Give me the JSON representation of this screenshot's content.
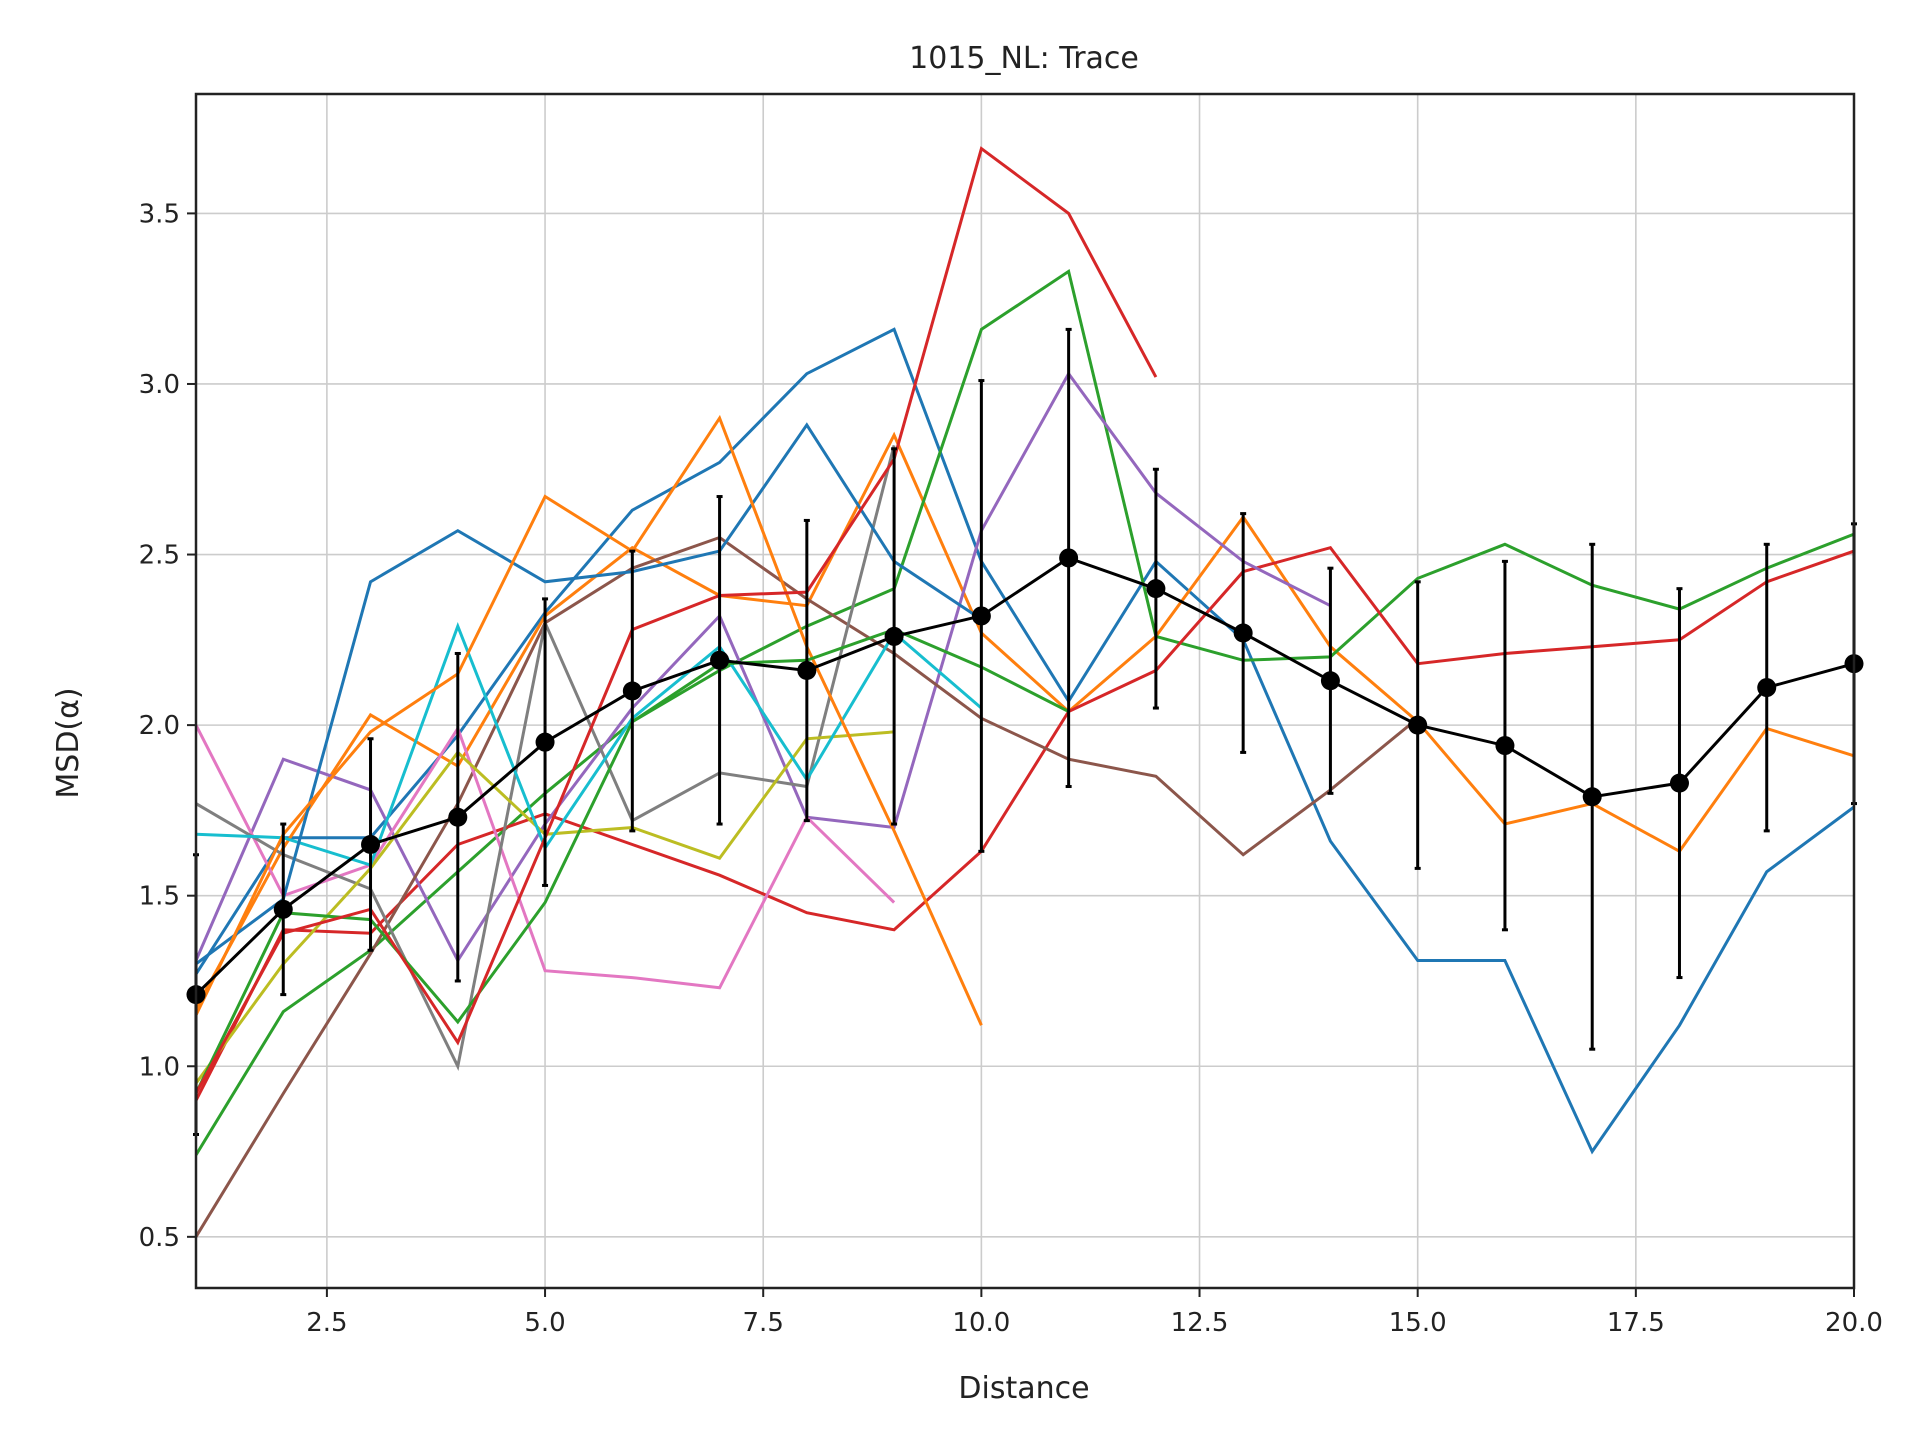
{
  "chart_data": {
    "type": "line",
    "title": "1015_NL: Trace",
    "xlabel": "Distance",
    "ylabel": "MSD(α)",
    "xlim": [
      1,
      20
    ],
    "ylim": [
      0.35,
      3.85
    ],
    "xticks": [
      2.5,
      5.0,
      7.5,
      10.0,
      12.5,
      15.0,
      17.5,
      20.0
    ],
    "xtick_labels": [
      "2.5",
      "5.0",
      "7.5",
      "10.0",
      "12.5",
      "15.0",
      "17.5",
      "20.0"
    ],
    "yticks": [
      0.5,
      1.0,
      1.5,
      2.0,
      2.5,
      3.0,
      3.5
    ],
    "ytick_labels": [
      "0.5",
      "1.0",
      "1.5",
      "2.0",
      "2.5",
      "3.0",
      "3.5"
    ],
    "grid": true,
    "legend": "none",
    "series": [
      {
        "color": "#1f77b4",
        "x": [
          1,
          2,
          3,
          4,
          5,
          6,
          7,
          8,
          9,
          10,
          11,
          12,
          13,
          14,
          15,
          16,
          17,
          18,
          19,
          20
        ],
        "y": [
          1.27,
          1.67,
          1.67,
          1.97,
          2.33,
          2.63,
          2.77,
          3.03,
          3.16,
          2.48,
          2.07,
          2.48,
          2.25,
          1.66,
          1.31,
          1.31,
          0.75,
          1.12,
          1.57,
          1.76
        ]
      },
      {
        "color": "#ff7f0e",
        "x": [
          1,
          2,
          3,
          4,
          5,
          6,
          7,
          8,
          9,
          10,
          11,
          12,
          13,
          14,
          15,
          16,
          17,
          18,
          19,
          20
        ],
        "y": [
          1.17,
          1.64,
          2.03,
          1.88,
          2.32,
          2.52,
          2.38,
          2.35,
          2.85,
          2.27,
          2.04,
          2.26,
          2.61,
          2.23,
          2.01,
          1.71,
          1.77,
          1.63,
          1.99,
          1.91
        ]
      },
      {
        "color": "#2ca02c",
        "x": [
          1,
          2,
          3,
          4,
          5,
          6,
          7,
          8,
          9,
          10,
          11,
          12,
          13,
          14,
          15,
          16,
          17,
          18,
          19,
          20
        ],
        "y": [
          0.74,
          1.16,
          1.34,
          1.57,
          1.8,
          2.01,
          2.16,
          2.29,
          2.4,
          3.16,
          3.33,
          2.26,
          2.19,
          2.2,
          2.43,
          2.53,
          2.41,
          2.34,
          2.46,
          2.56
        ]
      },
      {
        "color": "#d62728",
        "x": [
          1,
          2,
          3,
          4,
          5,
          6,
          7,
          8,
          9,
          10,
          11,
          12,
          13,
          14,
          15,
          16,
          17,
          18,
          19,
          20
        ],
        "y": [
          0.9,
          1.4,
          1.39,
          1.65,
          1.74,
          1.65,
          1.56,
          1.45,
          1.4,
          1.63,
          2.04,
          2.16,
          2.45,
          2.52,
          2.18,
          2.21,
          2.23,
          2.25,
          2.42,
          2.51
        ]
      },
      {
        "color": "#9467bd",
        "x": [
          1,
          2,
          3,
          4,
          5,
          6,
          7,
          8,
          9,
          10,
          11,
          12,
          13,
          14
        ],
        "y": [
          1.31,
          1.9,
          1.81,
          1.31,
          1.71,
          2.05,
          2.32,
          1.73,
          1.7,
          2.57,
          3.03,
          2.68,
          2.48,
          2.35
        ]
      },
      {
        "color": "#8c564b",
        "x": [
          1,
          2,
          3,
          4,
          5,
          6,
          7,
          8,
          9,
          10,
          11,
          12,
          13,
          14,
          15
        ],
        "y": [
          0.5,
          0.92,
          1.33,
          1.77,
          2.3,
          2.46,
          2.55,
          2.37,
          2.21,
          2.02,
          1.9,
          1.85,
          1.62,
          1.81,
          2.02
        ]
      },
      {
        "color": "#e377c2",
        "x": [
          1,
          2,
          3,
          4,
          5,
          6,
          7,
          8,
          9
        ],
        "y": [
          2.0,
          1.5,
          1.59,
          1.99,
          1.28,
          1.26,
          1.23,
          1.73,
          1.48
        ]
      },
      {
        "color": "#7f7f7f",
        "x": [
          1,
          2,
          3,
          4,
          5,
          6,
          7,
          8,
          9
        ],
        "y": [
          1.77,
          1.62,
          1.52,
          1.0,
          2.3,
          1.72,
          1.86,
          1.82,
          2.82
        ]
      },
      {
        "color": "#bcbd22",
        "x": [
          1,
          2,
          3,
          4,
          5,
          6,
          7,
          8,
          9
        ],
        "y": [
          0.95,
          1.3,
          1.58,
          1.92,
          1.68,
          1.7,
          1.61,
          1.96,
          1.98
        ]
      },
      {
        "color": "#17becf",
        "x": [
          1,
          2,
          3,
          4,
          5,
          6,
          7,
          8,
          9,
          10
        ],
        "y": [
          1.68,
          1.67,
          1.59,
          2.29,
          1.64,
          2.02,
          2.23,
          1.84,
          2.27,
          2.05
        ]
      },
      {
        "color": "#1f77b4",
        "x": [
          1,
          2,
          3,
          4,
          5,
          6,
          7,
          8,
          9,
          10
        ],
        "y": [
          1.3,
          1.49,
          2.42,
          2.57,
          2.42,
          2.45,
          2.51,
          2.88,
          2.48,
          2.31
        ]
      },
      {
        "color": "#ff7f0e",
        "x": [
          1,
          2,
          3,
          4,
          5,
          6,
          7,
          8,
          9,
          10
        ],
        "y": [
          1.15,
          1.68,
          1.98,
          2.15,
          2.67,
          2.51,
          2.9,
          2.23,
          1.69,
          1.12
        ]
      },
      {
        "color": "#2ca02c",
        "x": [
          1,
          2,
          3,
          4,
          5,
          6,
          7,
          8,
          9,
          10,
          11
        ],
        "y": [
          0.92,
          1.45,
          1.43,
          1.13,
          1.48,
          2.01,
          2.18,
          2.19,
          2.28,
          2.17,
          2.04
        ]
      },
      {
        "color": "#d62728",
        "x": [
          1,
          2,
          3,
          4,
          5,
          6,
          7,
          8,
          9,
          10,
          11,
          12
        ],
        "y": [
          0.92,
          1.39,
          1.46,
          1.07,
          1.67,
          2.28,
          2.38,
          2.39,
          2.78,
          3.69,
          3.5,
          3.02
        ]
      }
    ],
    "mean_series": {
      "color": "#000000",
      "x": [
        1,
        2,
        3,
        4,
        5,
        6,
        7,
        8,
        9,
        10,
        11,
        12,
        13,
        14,
        15,
        16,
        17,
        18,
        19,
        20
      ],
      "y": [
        1.21,
        1.46,
        1.65,
        1.73,
        1.95,
        2.1,
        2.19,
        2.16,
        2.26,
        2.32,
        2.49,
        2.4,
        2.27,
        2.13,
        2.0,
        1.94,
        1.79,
        1.83,
        2.11,
        2.18
      ],
      "err": [
        0.41,
        0.25,
        0.31,
        0.48,
        0.42,
        0.41,
        0.48,
        0.44,
        0.55,
        0.69,
        0.67,
        0.35,
        0.35,
        0.33,
        0.42,
        0.54,
        0.74,
        0.57,
        0.42,
        0.41
      ]
    }
  }
}
